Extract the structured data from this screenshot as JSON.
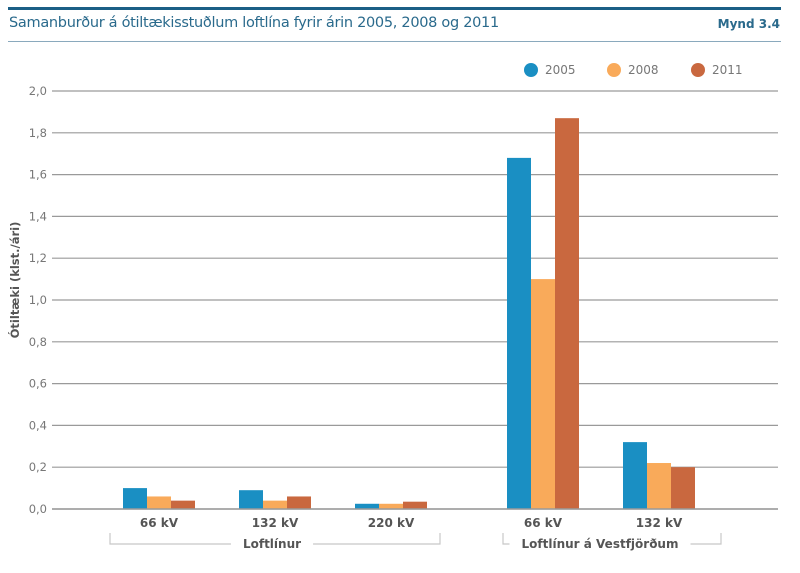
{
  "header": {
    "title": "Samanburður á ótiltækisstuðlum loftlína fyrir árin 2005, 2008 og 2011",
    "figure_label": "Mynd 3.4"
  },
  "chart_data": {
    "type": "bar",
    "title": "Samanburður á ótiltækisstuðlum loftlína fyrir árin 2005, 2008 og 2011",
    "xlabel": "",
    "ylabel": "Ótiltæki (klst./ári)",
    "ylim": [
      0,
      2.0
    ],
    "yticks": [
      "0,0",
      "0,2",
      "0,4",
      "0,6",
      "0,8",
      "1,0",
      "1,2",
      "1,4",
      "1,6",
      "1,8",
      "2,0"
    ],
    "ytick_values": [
      0,
      0.2,
      0.4,
      0.6,
      0.8,
      1.0,
      1.2,
      1.4,
      1.6,
      1.8,
      2.0
    ],
    "grid": true,
    "legend_position": "top-right",
    "categories": [
      "66 kV",
      "132 kV",
      "220 kV",
      "66 kV",
      "132 kV"
    ],
    "groups": [
      {
        "label": "Loftlínur",
        "categories": [
          0,
          1,
          2
        ]
      },
      {
        "label": "Loftlínur á Vestfjörðum",
        "categories": [
          3,
          4
        ]
      }
    ],
    "series": [
      {
        "name": "2005",
        "color": "#1a8fc3",
        "values": [
          0.1,
          0.09,
          0.025,
          1.68,
          0.32
        ]
      },
      {
        "name": "2008",
        "color": "#f9aa5a",
        "values": [
          0.06,
          0.04,
          0.025,
          1.1,
          0.22
        ]
      },
      {
        "name": "2011",
        "color": "#c9683f",
        "values": [
          0.04,
          0.06,
          0.035,
          1.87,
          0.2
        ]
      }
    ]
  }
}
